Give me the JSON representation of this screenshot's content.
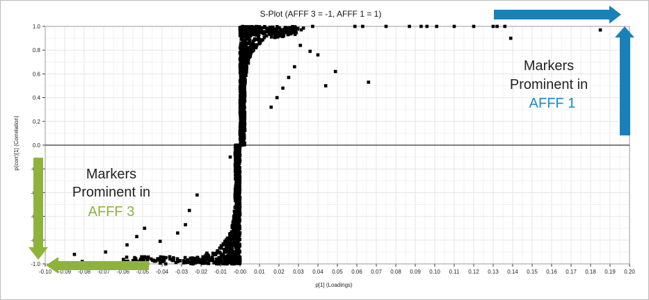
{
  "chart_data": {
    "type": "scatter",
    "title": "S-Plot (AFFF 3 = -1, AFFF 1 = 1)",
    "xlabel": "p[1] (Loadings)",
    "ylabel": "p(corr)[1] (Correlation)",
    "xlim": [
      -0.1,
      0.2
    ],
    "ylim": [
      -1.0,
      1.0
    ],
    "x_ticks": [
      "-0.10",
      "-0.09",
      "-0.08",
      "-0.07",
      "-0.06",
      "-0.05",
      "-0.04",
      "-0.03",
      "-0.02",
      "-0.01",
      "-0.00",
      "0.01",
      "0.02",
      "0.03",
      "0.04",
      "0.05",
      "0.06",
      "0.07",
      "0.08",
      "0.09",
      "0.10",
      "0.11",
      "0.12",
      "0.13",
      "0.14",
      "0.15",
      "0.16",
      "0.17",
      "0.18",
      "0.19",
      "0.20"
    ],
    "y_ticks": [
      "-1.0",
      "-0.8",
      "-0.6",
      "-0.4",
      "-0.2",
      "0.0",
      "0.2",
      "0.4",
      "0.6",
      "0.8",
      "1.0"
    ],
    "grid": true,
    "points": [
      [
        0.185,
        0.97
      ],
      [
        0.139,
        0.9
      ],
      [
        0.136,
        1.0
      ],
      [
        0.13,
        1.0
      ],
      [
        0.132,
        1.0
      ],
      [
        0.12,
        1.0
      ],
      [
        0.11,
        1.0
      ],
      [
        0.101,
        1.0
      ],
      [
        0.096,
        1.0
      ],
      [
        0.093,
        1.0
      ],
      [
        0.087,
        1.0
      ],
      [
        0.075,
        1.0
      ],
      [
        0.066,
        0.53
      ],
      [
        0.063,
        1.0
      ],
      [
        0.059,
        1.0
      ],
      [
        0.049,
        0.62
      ],
      [
        0.044,
        0.5
      ],
      [
        0.04,
        0.76
      ],
      [
        0.036,
        0.79
      ],
      [
        0.031,
        0.84
      ],
      [
        0.028,
        0.66
      ],
      [
        0.025,
        0.57
      ],
      [
        0.022,
        0.48
      ],
      [
        0.019,
        0.4
      ],
      [
        0.016,
        0.32
      ],
      [
        -0.002,
        0.0
      ],
      [
        -0.005,
        -0.1
      ],
      [
        -0.022,
        -0.42
      ],
      [
        -0.026,
        -0.55
      ],
      [
        -0.028,
        -0.67
      ],
      [
        -0.032,
        -0.74
      ],
      [
        -0.041,
        -0.81
      ],
      [
        -0.049,
        -0.7
      ],
      [
        -0.053,
        -0.77
      ],
      [
        -0.058,
        -0.84
      ],
      [
        -0.069,
        -0.9
      ],
      [
        -0.081,
        -0.98
      ],
      [
        -0.085,
        -0.92
      ],
      [
        -0.089,
        -0.99
      ],
      [
        -0.094,
        -1.0
      ]
    ]
  },
  "annotations": {
    "afff1": {
      "line1": "Markers",
      "line2": "Prominent in",
      "line3": "AFFF 1",
      "color": "#1a8bc7"
    },
    "afff3": {
      "line1": "Markers",
      "line2": "Prominent in",
      "line3": "AFFF 3",
      "color": "#8db33a"
    }
  },
  "colors": {
    "grid": "#e4e4e4",
    "points": "#000000",
    "blue_arrow": "#1a80b9",
    "green_arrow": "#8db33a"
  }
}
